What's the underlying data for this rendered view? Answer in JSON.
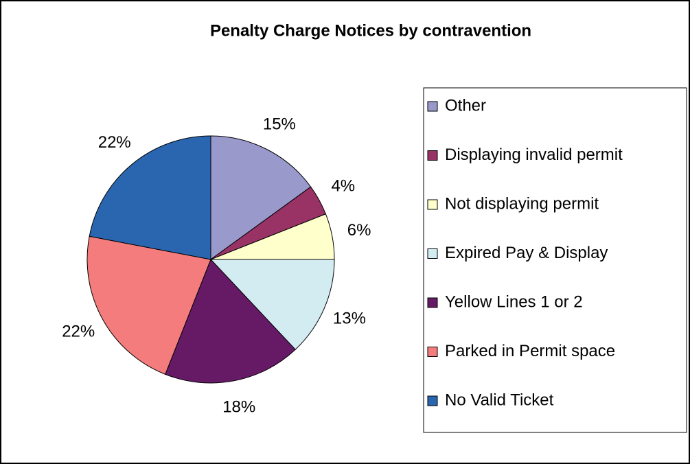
{
  "chart_data": {
    "type": "pie",
    "title": "Penalty Charge Notices by contravention",
    "categories": [
      "Other",
      "Displaying invalid permit",
      "Not displaying permit",
      "Expired Pay & Display",
      "Yellow Lines 1 or 2",
      "Parked in Permit space",
      "No Valid Ticket"
    ],
    "values": [
      15,
      4,
      6,
      13,
      18,
      22,
      22
    ],
    "value_labels": [
      "15%",
      "4%",
      "6%",
      "13%",
      "18%",
      "22%",
      "22%"
    ],
    "colors": [
      "#9999cc",
      "#993366",
      "#ffffcc",
      "#d2ecf2",
      "#661a66",
      "#f47c7c",
      "#2a66b0"
    ],
    "legend": "right"
  }
}
